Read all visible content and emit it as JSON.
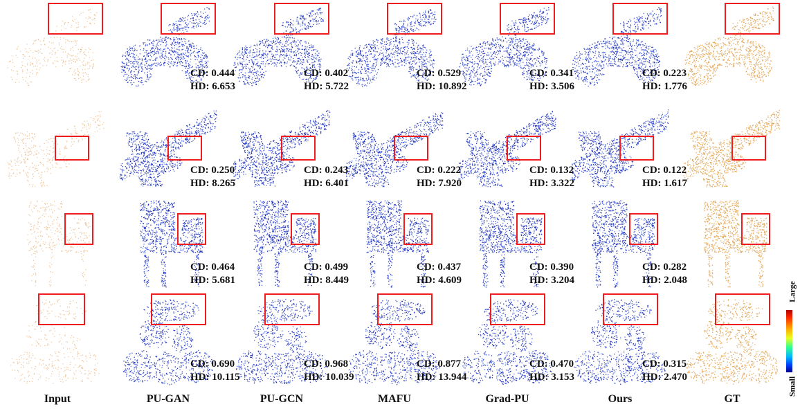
{
  "columns": [
    "Input",
    "PU-GAN",
    "PU-GCN",
    "MAFU",
    "Grad-PU",
    "Ours",
    "GT"
  ],
  "rows": [
    {
      "object": "motorcycle",
      "metrics": [
        {
          "cd": "CD: 0.444",
          "hd": "HD: 6.653"
        },
        {
          "cd": "CD: 0.402",
          "hd": "HD: 5.722"
        },
        {
          "cd": "CD: 0.529",
          "hd": "HD: 10.892"
        },
        {
          "cd": "CD: 0.341",
          "hd": "HD: 3.506"
        },
        {
          "cd": "CD: 0.223",
          "hd": "HD: 1.776"
        }
      ]
    },
    {
      "object": "airplane",
      "metrics": [
        {
          "cd": "CD: 0.250",
          "hd": "HD: 8.265"
        },
        {
          "cd": "CD: 0.243",
          "hd": "HD: 6.401"
        },
        {
          "cd": "CD: 0.222",
          "hd": "HD: 7.920"
        },
        {
          "cd": "CD: 0.132",
          "hd": "HD: 3.322"
        },
        {
          "cd": "CD: 0.122",
          "hd": "HD: 1.617"
        }
      ]
    },
    {
      "object": "chair",
      "metrics": [
        {
          "cd": "CD: 0.464",
          "hd": "HD: 5.681"
        },
        {
          "cd": "CD: 0.499",
          "hd": "HD: 8.449"
        },
        {
          "cd": "CD: 0.437",
          "hd": "HD: 4.609"
        },
        {
          "cd": "CD: 0.390",
          "hd": "HD: 3.204"
        },
        {
          "cd": "CD: 0.282",
          "hd": "HD: 2.048"
        }
      ]
    },
    {
      "object": "sculpture",
      "metrics": [
        {
          "cd": "CD: 0.690",
          "hd": "HD: 10.115"
        },
        {
          "cd": "CD: 0.968",
          "hd": "HD: 10.039"
        },
        {
          "cd": "CD: 0.877",
          "hd": "HD: 13.944"
        },
        {
          "cd": "CD: 0.470",
          "hd": "HD: 3.153"
        },
        {
          "cd": "CD: 0.315",
          "hd": "HD: 2.470"
        }
      ]
    }
  ],
  "colorbar": {
    "top_label": "Large",
    "bottom_label": "Small"
  },
  "colors": {
    "input_points": "#e8b27a",
    "gt_points": "#e0a04a",
    "error_low": "#0a1aa8",
    "error_mid": "#2f4fd8",
    "highlight_box": "#ee1c1c"
  }
}
